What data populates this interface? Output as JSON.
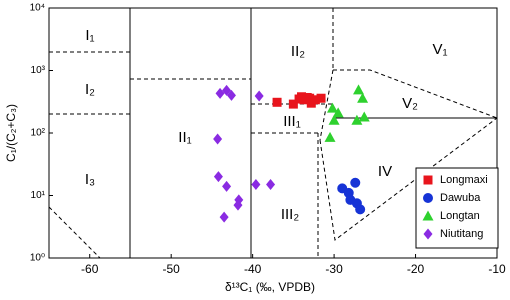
{
  "chart_data": {
    "type": "scatter",
    "xlabel": "δ¹³C₁ (‰, VPDB)",
    "ylabel": "C₁/(C₂+C₃)",
    "xlim": [
      -65,
      -10
    ],
    "xticks": [
      -60,
      -50,
      -40,
      -30,
      -20,
      -10
    ],
    "ylim": [
      1,
      10000
    ],
    "log_y": true,
    "yticks": [
      {
        "value": 1,
        "label": "10⁰"
      },
      {
        "value": 10,
        "label": "10¹"
      },
      {
        "value": 100,
        "label": "10²"
      },
      {
        "value": 1000,
        "label": "10³"
      },
      {
        "value": 10000,
        "label": "10⁴"
      }
    ],
    "legend": "lower right",
    "annotations": [
      "I₁",
      "I₂",
      "I₃",
      "II₁",
      "II₂",
      "III₁",
      "III₂",
      "IV",
      "V₁",
      "V₂"
    ],
    "series": [
      {
        "name": "Longmaxi",
        "color": "#e8141c",
        "marker": "square",
        "x": [
          -37,
          -35,
          -34.3,
          -34,
          -33.7,
          -33.3,
          -33,
          -32.8,
          -32.3,
          -31.6
        ],
        "values": [
          310,
          290,
          350,
          380,
          340,
          370,
          360,
          300,
          340,
          360
        ]
      },
      {
        "name": "Dawuba",
        "color": "#1633d6",
        "marker": "circle",
        "x": [
          -29,
          -28.2,
          -27.4,
          -28,
          -27.2,
          -26.8
        ],
        "values": [
          13,
          11,
          16,
          8.5,
          7.5,
          6
        ]
      },
      {
        "name": "Longtan",
        "color": "#2ed12e",
        "marker": "triangle",
        "x": [
          -30.2,
          -27,
          -26.5,
          -30,
          -29.5,
          -27.2,
          -26.3,
          -30.5
        ],
        "values": [
          250,
          490,
          360,
          160,
          210,
          160,
          180,
          85
        ]
      },
      {
        "name": "Niutitang",
        "color": "#8a2be2",
        "marker": "diamond",
        "x": [
          -44,
          -43.2,
          -42.6,
          -39.2,
          -44.3,
          -44.2,
          -43.2,
          -41.7,
          -41.8,
          -39.6,
          -37.8,
          -43.5
        ],
        "values": [
          430,
          480,
          400,
          390,
          80,
          20,
          14,
          8.5,
          7,
          15,
          15,
          4.5
        ]
      }
    ]
  }
}
